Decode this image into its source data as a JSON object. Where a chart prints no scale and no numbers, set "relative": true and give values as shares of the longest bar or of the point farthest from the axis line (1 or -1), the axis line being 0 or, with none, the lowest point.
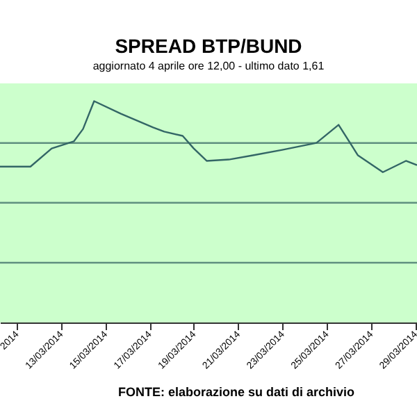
{
  "chart_data": {
    "type": "line",
    "title": "SPREAD BTP/BUND",
    "subtitle": "aggiornato 4 aprile ore 12,00 - ultimo dato 1,61",
    "relative": true,
    "ref_lines": [
      {
        "axis": "y",
        "value": 0.27,
        "color": "#5f8f7f"
      },
      {
        "axis": "y",
        "value": 0.541,
        "color": "#5f8f7f"
      },
      {
        "axis": "y",
        "value": 0.811,
        "color": "#5f8f7f"
      }
    ],
    "tick_labels": "x",
    "x": [
      "2014-03-10T06:00",
      "2014-03-11T15:00",
      "2014-03-12T14:00",
      "2014-03-13T14:00",
      "2014-03-14T00:00",
      "2014-03-14T12:00",
      "2014-03-15T17:00",
      "2014-03-17T04:00",
      "2014-03-17T16:00",
      "2014-03-18T12:00",
      "2014-03-19T00:00",
      "2014-03-19T14:00",
      "2014-03-20T14:00",
      "2014-03-21T16:00",
      "2014-03-23T00:00",
      "2014-03-24T13:00",
      "2014-03-25T13:00",
      "2014-03-26T10:00",
      "2014-03-27T13:00",
      "2014-03-28T14:00",
      "2014-03-29T02:00"
    ],
    "series": [
      {
        "color": "#336666",
        "values": [
          0.704,
          0.704,
          0.786,
          0.818,
          0.874,
          1.0,
          0.943,
          0.881,
          0.862,
          0.843,
          0.786,
          0.73,
          0.736,
          0.755,
          0.78,
          0.811,
          0.893,
          0.755,
          0.679,
          0.73,
          0.711
        ]
      }
    ],
    "xlim": [
      "2014-03-10T06:00",
      "2014-03-29T02:00"
    ],
    "xticks": [
      {
        "value": "2014-03-11",
        "label": "2014"
      },
      {
        "value": "2014-03-13",
        "label": "13/03/2014"
      },
      {
        "value": "2014-03-15",
        "label": "15/03/2014"
      },
      {
        "value": "2014-03-17",
        "label": "17/03/2014"
      },
      {
        "value": "2014-03-19",
        "label": "19/03/2014"
      },
      {
        "value": "2014-03-21",
        "label": "21/03/2014"
      },
      {
        "value": "2014-03-23",
        "label": "23/03/2014"
      },
      {
        "value": "2014-03-25",
        "label": "25/03/2014"
      },
      {
        "value": "2014-03-27",
        "label": "27/03/2014"
      },
      {
        "value": "2014-03-29",
        "label": "29/03/2014"
      }
    ],
    "annotations": [
      "FONTE: elaborazione su dati di archivio"
    ],
    "legend": false
  }
}
